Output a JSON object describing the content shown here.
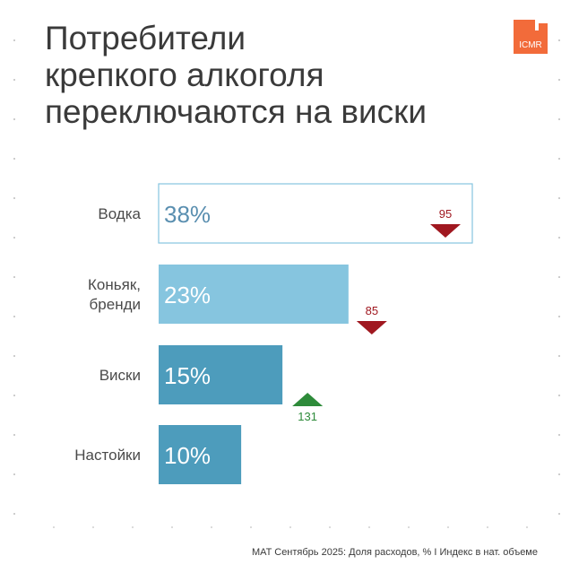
{
  "title_lines": [
    "Потребители",
    "крепкого алкоголя",
    "переключаются на виски"
  ],
  "logo": {
    "text": "ICMR",
    "color": "#f26b3a"
  },
  "footnote": "MAT Сентябрь 2025: Доля расходов, % I Индекс в нат. объеме",
  "colors": {
    "bar_fills": [
      "#ffffff",
      "#86c5df",
      "#4d9cbc",
      "#4d9cbc"
    ],
    "bar_outline": "#86c5df",
    "down": "#a01820",
    "up": "#2e8b3a",
    "value_text_light": "#ffffff",
    "value_text_dark": "#5a8fb0"
  },
  "chart_data": {
    "type": "bar",
    "orientation": "horizontal",
    "categories": [
      [
        "Водка"
      ],
      [
        "Коньяк,",
        "бренди"
      ],
      [
        "Виски"
      ],
      [
        "Настойки"
      ]
    ],
    "series": [
      {
        "values": [
          38,
          23,
          15,
          10
        ],
        "value_labels": [
          "38%",
          "23%",
          "15%",
          "10%"
        ]
      }
    ],
    "index_values": [
      95,
      85,
      131,
      null
    ],
    "index_direction": [
      "down",
      "down",
      "up",
      null
    ]
  }
}
